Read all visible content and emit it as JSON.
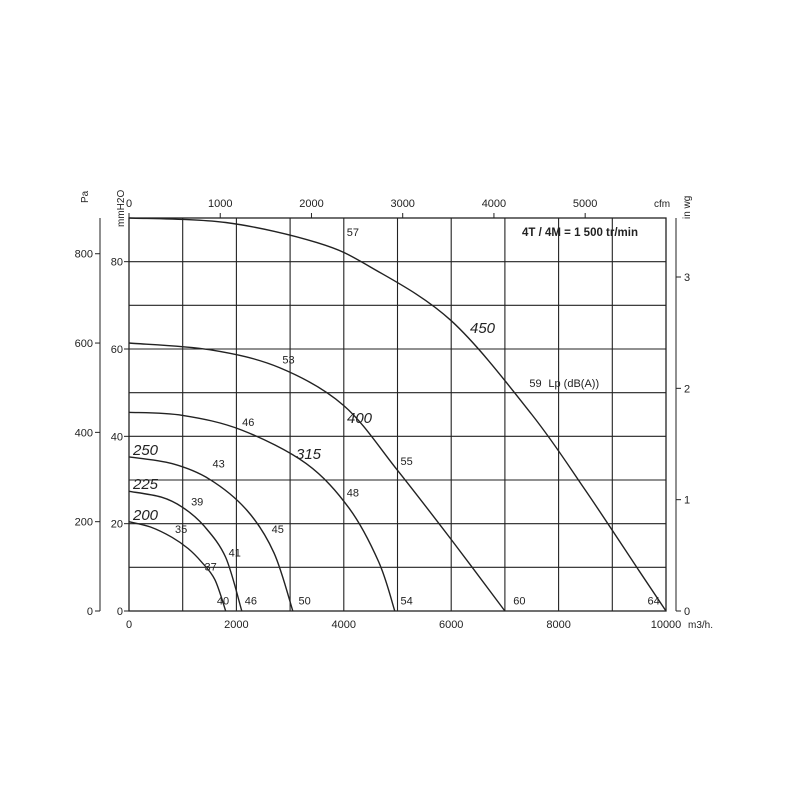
{
  "chart_data": {
    "type": "line",
    "title": "4T / 4M = 1 500 tr/min",
    "x_axis": {
      "label": "m3/h.",
      "range": [
        0,
        10000
      ],
      "ticks": [
        "0",
        "2000",
        "4000",
        "6000",
        "8000",
        "10000"
      ]
    },
    "x2_axis": {
      "label": "cfm",
      "range": [
        0,
        5886
      ],
      "ticks": [
        "0",
        "1000",
        "2000",
        "3000",
        "4000",
        "5000"
      ]
    },
    "y_axis_pa": {
      "label": "Pa",
      "range": [
        0,
        880
      ],
      "ticks": [
        "0",
        "200",
        "400",
        "600",
        "800"
      ]
    },
    "y_axis_mmh2o": {
      "label": "mmH2O",
      "range": [
        0,
        90
      ],
      "ticks": [
        "0",
        "20",
        "40",
        "60",
        "80"
      ]
    },
    "y2_axis": {
      "label": "in wg",
      "range": [
        0,
        3.53
      ],
      "ticks": [
        "0",
        "1",
        "2",
        "3"
      ]
    },
    "grid": true,
    "noise_unit_label": "Lp  (dB(A))",
    "series": [
      {
        "name": "200",
        "points": [
          [
            0,
            200
          ],
          [
            400,
            188
          ],
          [
            800,
            165
          ],
          [
            1100,
            140
          ],
          [
            1350,
            110
          ],
          [
            1600,
            70
          ],
          [
            1800,
            0
          ]
        ],
        "noise": [
          {
            "x": 800,
            "y": 168,
            "label": "35"
          },
          {
            "x": 1350,
            "y": 84,
            "label": "37"
          },
          {
            "x": 1580,
            "y": 8,
            "label": "40"
          }
        ]
      },
      {
        "name": "225",
        "points": [
          [
            0,
            268
          ],
          [
            600,
            255
          ],
          [
            1000,
            232
          ],
          [
            1400,
            190
          ],
          [
            1800,
            120
          ],
          [
            2100,
            0
          ]
        ],
        "noise": [
          {
            "x": 1100,
            "y": 230,
            "label": "39"
          },
          {
            "x": 1800,
            "y": 115,
            "label": "41"
          },
          {
            "x": 2100,
            "y": 8,
            "label": "46"
          }
        ]
      },
      {
        "name": "250",
        "points": [
          [
            0,
            345
          ],
          [
            800,
            330
          ],
          [
            1500,
            295
          ],
          [
            2200,
            225
          ],
          [
            2700,
            130
          ],
          [
            3050,
            0
          ]
        ],
        "noise": [
          {
            "x": 1500,
            "y": 315,
            "label": "43"
          },
          {
            "x": 2600,
            "y": 168,
            "label": "45"
          },
          {
            "x": 3100,
            "y": 8,
            "label": "50"
          }
        ]
      },
      {
        "name": "315",
        "points": [
          [
            0,
            445
          ],
          [
            1000,
            438
          ],
          [
            2100,
            405
          ],
          [
            3300,
            330
          ],
          [
            4100,
            230
          ],
          [
            4650,
            110
          ],
          [
            4950,
            0
          ]
        ],
        "noise": [
          {
            "x": 2050,
            "y": 408,
            "label": "46"
          },
          {
            "x": 4000,
            "y": 250,
            "label": "48"
          },
          {
            "x": 5000,
            "y": 8,
            "label": "54"
          }
        ]
      },
      {
        "name": "400",
        "points": [
          [
            0,
            600
          ],
          [
            1500,
            585
          ],
          [
            2800,
            545
          ],
          [
            4000,
            460
          ],
          [
            5000,
            315
          ],
          [
            6000,
            160
          ],
          [
            7000,
            0
          ]
        ],
        "noise": [
          {
            "x": 2800,
            "y": 547,
            "label": "53"
          },
          {
            "x": 5000,
            "y": 320,
            "label": "55"
          },
          {
            "x": 7100,
            "y": 8,
            "label": "60"
          }
        ]
      },
      {
        "name": "450",
        "points": [
          [
            0,
            880
          ],
          [
            1800,
            870
          ],
          [
            3500,
            825
          ],
          [
            4500,
            770
          ],
          [
            6000,
            650
          ],
          [
            7500,
            440
          ],
          [
            8500,
            270
          ],
          [
            9500,
            90
          ],
          [
            10000,
            0
          ]
        ],
        "noise": [
          {
            "x": 4000,
            "y": 833,
            "label": "57"
          },
          {
            "x": 7400,
            "y": 495,
            "label": "59"
          },
          {
            "x": 9600,
            "y": 8,
            "label": "64"
          }
        ]
      }
    ]
  }
}
